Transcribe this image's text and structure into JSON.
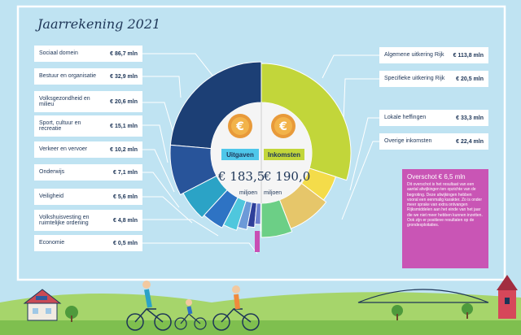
{
  "title": "Jaarrekening 2021",
  "currency_icon": "euro-coin-icon",
  "uitgaven": {
    "tag": "Uitgaven",
    "total": "€ 183,5",
    "unit": "miljoen",
    "items": [
      {
        "label": "Sociaal domein",
        "amount": "€ 86,7 mln"
      },
      {
        "label": "Bestuur en organisatie",
        "amount": "€ 32,9 mln"
      },
      {
        "label": "Volksgezondheid en milieu",
        "amount": "€ 20,6 mln"
      },
      {
        "label": "Sport, cultuur en recreatie",
        "amount": "€ 15,1 mln"
      },
      {
        "label": "Verkeer en vervoer",
        "amount": "€ 10,2 mln"
      },
      {
        "label": "Onderwijs",
        "amount": "€ 7,1 mln"
      },
      {
        "label": "Veiligheid",
        "amount": "€ 5,6 mln"
      },
      {
        "label": "Volkshuisvesting en ruimtelijke ordening",
        "amount": "€ 4,8 mln"
      },
      {
        "label": "Economie",
        "amount": "€ 0,5 mln"
      }
    ]
  },
  "inkomsten": {
    "tag": "Inkomsten",
    "total": "€ 190,0",
    "unit": "miljoen",
    "items": [
      {
        "label": "Algemene uitkering Rijk",
        "amount": "€ 113,8 mln"
      },
      {
        "label": "Specifieke uitkering Rijk",
        "amount": "€ 20,5 mln"
      },
      {
        "label": "Lokale heffingen",
        "amount": "€ 33,3 mln"
      },
      {
        "label": "Overige inkomsten",
        "amount": "€ 22,4 mln"
      }
    ]
  },
  "overschot": {
    "title": "Overschot € 6,5 mln",
    "text": "Dit overschot is het resultaat van een aantal afwijkingen ten opzichte van de begroting. Deze afwijkingen hebben vooral een eenmalig karakter. Zo is onder meer sprake van extra ontvangen Rijksmiddelen aan het einde van het jaar die we niet meer hebben kunnen inzetten. Ook zijn er positieve resultaten op de grondexploitaties."
  },
  "colors": {
    "expenses": [
      "#1c3f75",
      "#28549a",
      "#2ba3c6",
      "#2e73c4",
      "#4fc7dd",
      "#6c9ad8",
      "#2e3f9a",
      "#6b7fd0",
      "#c94fb4"
    ],
    "income": [
      "#c2d63a",
      "#f4dc4a",
      "#e6c66a",
      "#6ccf86"
    ],
    "sky": "#bfe3f2",
    "grass": "#a6d56b",
    "overschot": "#c955b5"
  },
  "chart_data": {
    "type": "pie",
    "layout": "split-donut: left half expenses, right half income",
    "series": [
      {
        "name": "Uitgaven",
        "categories": [
          "Sociaal domein",
          "Bestuur en organisatie",
          "Volksgezondheid en milieu",
          "Sport, cultuur en recreatie",
          "Verkeer en vervoer",
          "Onderwijs",
          "Veiligheid",
          "Volkshuisvesting en ruimtelijke ordening",
          "Economie"
        ],
        "values": [
          86.7,
          32.9,
          20.6,
          15.1,
          10.2,
          7.1,
          5.6,
          4.8,
          0.5
        ]
      },
      {
        "name": "Inkomsten",
        "categories": [
          "Algemene uitkering Rijk",
          "Specifieke uitkering Rijk",
          "Lokale heffingen",
          "Overige inkomsten"
        ],
        "values": [
          113.8,
          20.5,
          33.3,
          22.4
        ]
      }
    ]
  }
}
